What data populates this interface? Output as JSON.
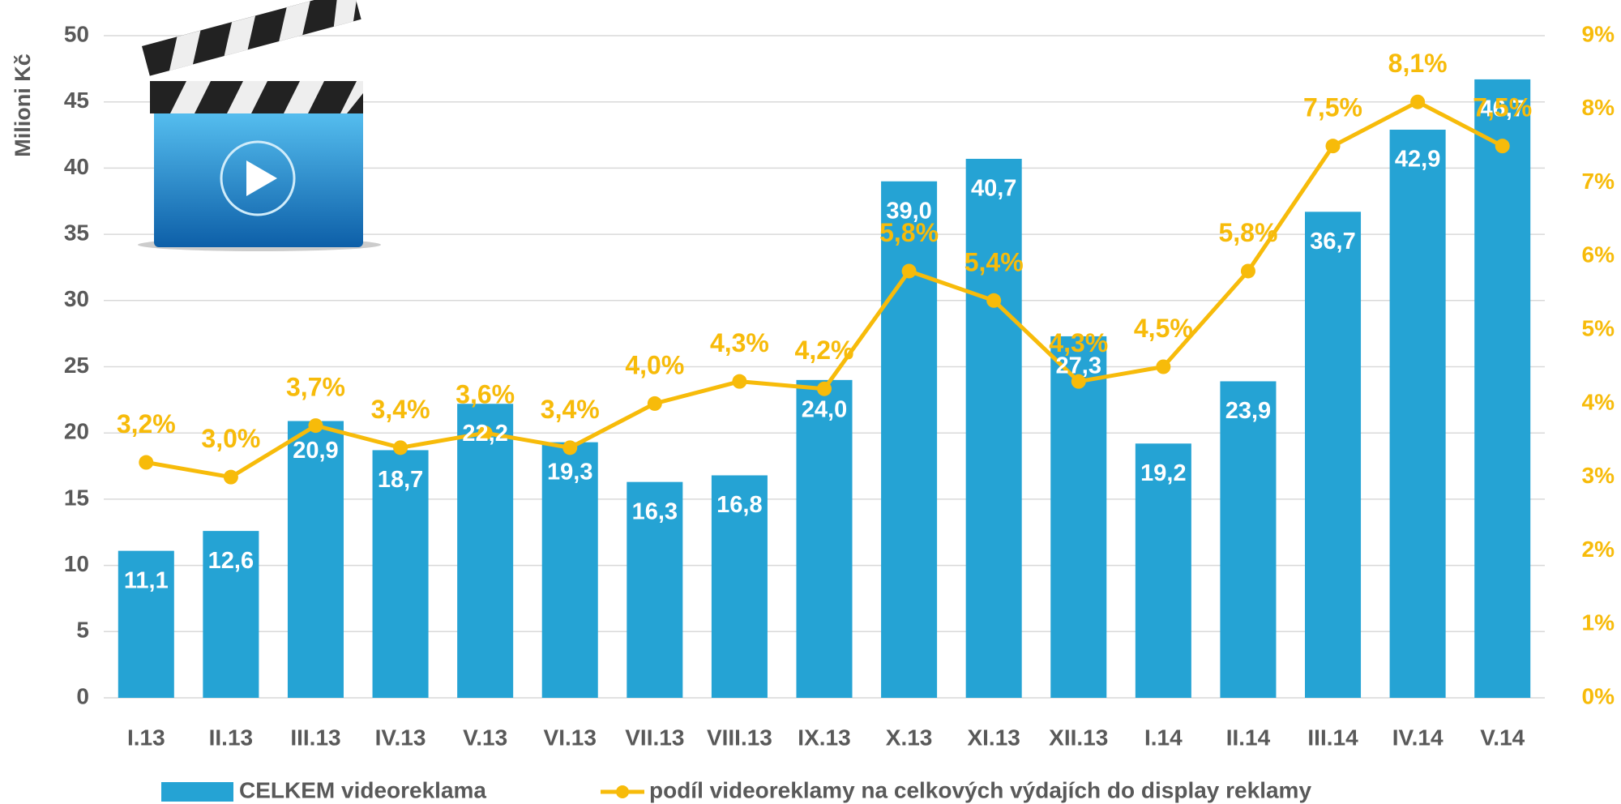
{
  "chart_data": {
    "type": "bar",
    "ylabel": "Milioni Kč",
    "categories": [
      "I.13",
      "II.13",
      "III.13",
      "IV.13",
      "V.13",
      "VI.13",
      "VII.13",
      "VIII.13",
      "IX.13",
      "X.13",
      "XI.13",
      "XII.13",
      "I.14",
      "II.14",
      "III.14",
      "IV.14",
      "V.14"
    ],
    "series": [
      {
        "name": "CELKEM videoreklama",
        "type": "bar",
        "color": "#25a3d4",
        "values": [
          11.1,
          12.6,
          20.9,
          18.7,
          22.2,
          19.3,
          16.3,
          16.8,
          24.0,
          39.0,
          40.7,
          27.3,
          19.2,
          23.9,
          36.7,
          42.9,
          46.7
        ],
        "value_labels": [
          "11,1",
          "12,6",
          "20,9",
          "18,7",
          "22,2",
          "19,3",
          "16,3",
          "16,8",
          "24,0",
          "39,0",
          "40,7",
          "27,3",
          "19,2",
          "23,9",
          "36,7",
          "42,9",
          "46,7"
        ]
      },
      {
        "name": "podíl videoreklamy na celkových výdajích do display reklamy",
        "type": "line",
        "axis": "y2",
        "color": "#f7bb0a",
        "values": [
          3.2,
          3.0,
          3.7,
          3.4,
          3.6,
          3.4,
          4.0,
          4.3,
          4.2,
          5.8,
          5.4,
          4.3,
          4.5,
          5.8,
          7.5,
          8.1,
          7.5
        ],
        "value_labels": [
          "3,2%",
          "3,0%",
          "3,7%",
          "3,4%",
          "3,6%",
          "3,4%",
          "4,0%",
          "4,3%",
          "4,2%",
          "5,8%",
          "5,4%",
          "4,3%",
          "4,5%",
          "5,8%",
          "7,5%",
          "8,1%",
          "7,5%"
        ]
      }
    ],
    "ylim": [
      0,
      50
    ],
    "yticks": [
      0,
      5,
      10,
      15,
      20,
      25,
      30,
      35,
      40,
      45,
      50
    ],
    "y2lim": [
      0,
      9
    ],
    "y2ticks": [
      {
        "value": 0,
        "label": "0%"
      },
      {
        "value": 1,
        "label": "1%"
      },
      {
        "value": 2,
        "label": "2%"
      },
      {
        "value": 3,
        "label": "3%"
      },
      {
        "value": 4,
        "label": "4%"
      },
      {
        "value": 5,
        "label": "5%"
      },
      {
        "value": 6,
        "label": "6%"
      },
      {
        "value": 7,
        "label": "7%"
      },
      {
        "value": 8,
        "label": "8%"
      },
      {
        "value": 9,
        "label": "9%"
      }
    ],
    "grid": true
  }
}
